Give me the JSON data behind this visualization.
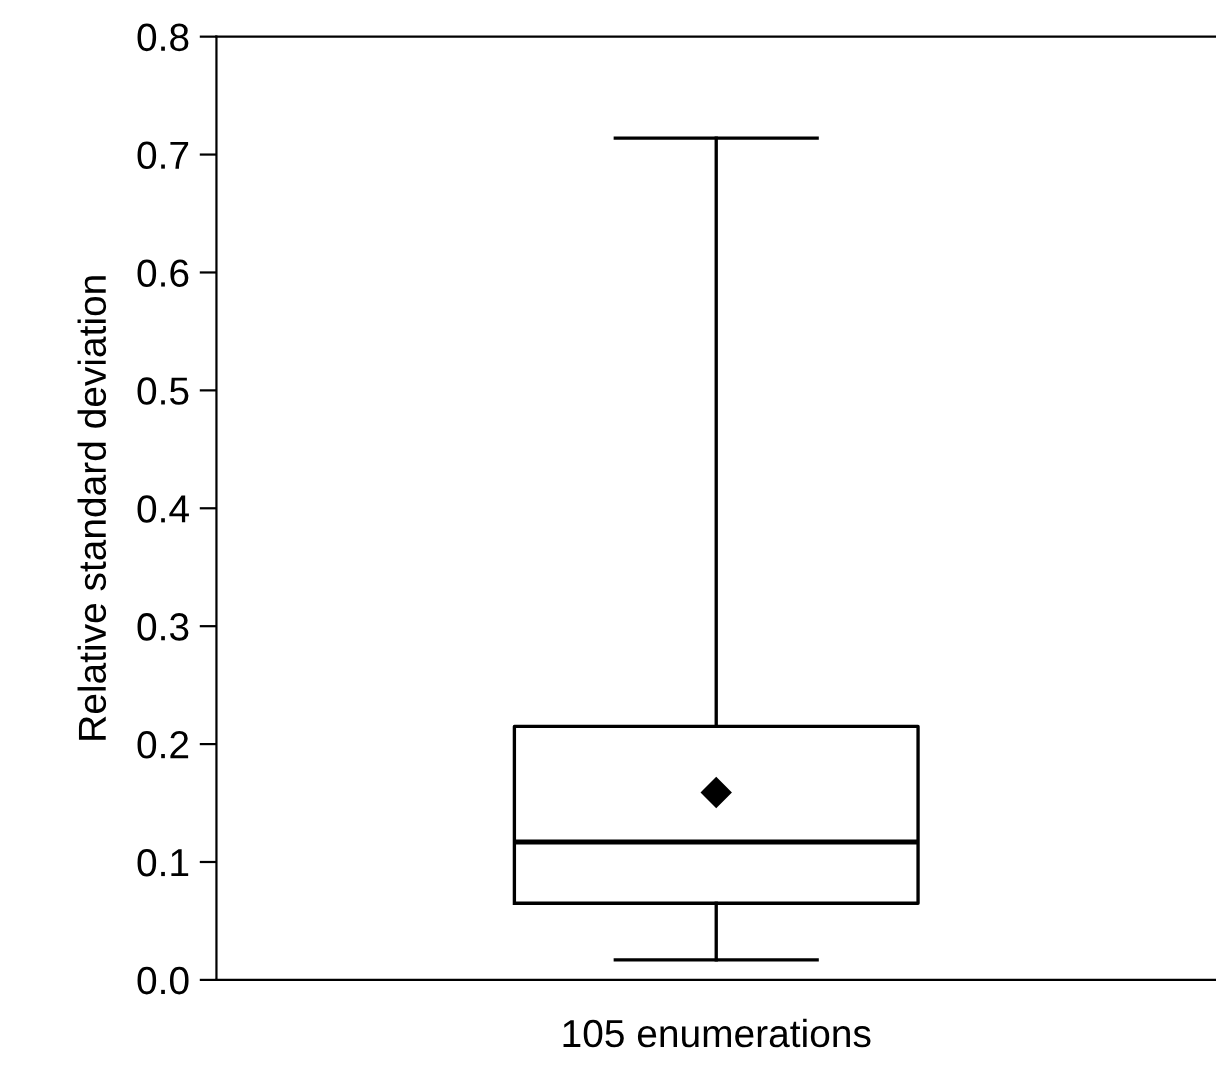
{
  "chart_data": {
    "type": "box",
    "ylabel": "Relative standard deviation",
    "categories": [
      "105 enumerations"
    ],
    "boxes": [
      {
        "low": 0.017,
        "q1": 0.065,
        "median": 0.117,
        "q3": 0.215,
        "high": 0.714,
        "mean": 0.159
      }
    ],
    "ylim": [
      0.0,
      0.8
    ],
    "yticks": [
      {
        "value": 0.0,
        "label": "0.0"
      },
      {
        "value": 0.1,
        "label": "0.1"
      },
      {
        "value": 0.2,
        "label": "0.2"
      },
      {
        "value": 0.3,
        "label": "0.3"
      },
      {
        "value": 0.4,
        "label": "0.4"
      },
      {
        "value": 0.5,
        "label": "0.5"
      },
      {
        "value": 0.6,
        "label": "0.6"
      },
      {
        "value": 0.7,
        "label": "0.7"
      },
      {
        "value": 0.8,
        "label": "0.8"
      }
    ],
    "grid": false,
    "marker": "diamond"
  }
}
